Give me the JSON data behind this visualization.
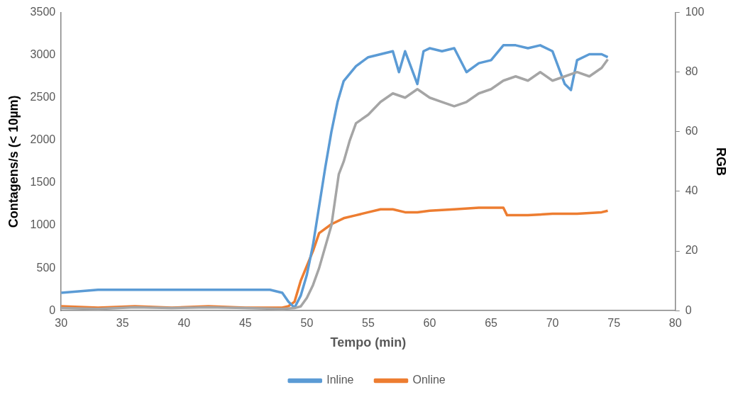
{
  "chart_data": {
    "type": "line",
    "xlabel": "Tempo (min)",
    "ylabel": "Contagens/s (< 10µm)",
    "y2label": "RGB",
    "xlim": [
      30,
      80
    ],
    "xticks": [
      30,
      35,
      40,
      45,
      50,
      55,
      60,
      65,
      70,
      75,
      80
    ],
    "ylim": [
      0,
      3500
    ],
    "yticks": [
      0,
      500,
      1000,
      1500,
      2000,
      2500,
      3000,
      3500
    ],
    "y2lim": [
      0,
      100
    ],
    "y2ticks": [
      0,
      20,
      40,
      60,
      80,
      100
    ],
    "grid": false,
    "legend": "bottom",
    "marker": "none",
    "line_style": "solid",
    "series": [
      {
        "color": "#a5a5a5",
        "axis": "y",
        "x": [
          30,
          33,
          36,
          39,
          42,
          45,
          48,
          49,
          49.5,
          50,
          50.5,
          51,
          51.5,
          52,
          52.3,
          52.6,
          53,
          53.5,
          54,
          55,
          56,
          57,
          58,
          59,
          60,
          61,
          62,
          63,
          64,
          65,
          66,
          67,
          68,
          69,
          70,
          71,
          72,
          73,
          74,
          74.5
        ],
        "values": [
          30,
          20,
          40,
          30,
          40,
          30,
          20,
          30,
          50,
          150,
          300,
          500,
          750,
          1000,
          1300,
          1600,
          1750,
          2000,
          2200,
          2300,
          2450,
          2550,
          2500,
          2600,
          2500,
          2450,
          2400,
          2450,
          2550,
          2600,
          2700,
          2750,
          2700,
          2800,
          2700,
          2750,
          2800,
          2750,
          2850,
          2950
        ]
      },
      {
        "name": "Inline",
        "color": "#5b9bd5",
        "axis": "y2",
        "x": [
          30,
          33,
          36,
          39,
          42,
          45,
          47,
          48,
          48.5,
          49,
          49.5,
          50,
          50.5,
          51,
          51.5,
          52,
          52.5,
          53,
          54,
          55,
          56,
          57,
          57.5,
          58,
          59,
          59.5,
          60,
          61,
          62,
          63,
          64,
          65,
          66,
          67,
          68,
          69,
          70,
          71,
          71.5,
          72,
          73,
          74,
          74.5
        ],
        "values": [
          6,
          7,
          7,
          7,
          7,
          7,
          7,
          6,
          3,
          1,
          5,
          12,
          22,
          35,
          48,
          60,
          70,
          77,
          82,
          85,
          86,
          87,
          80,
          87,
          76,
          87,
          88,
          87,
          88,
          80,
          83,
          84,
          89,
          89,
          88,
          89,
          87,
          76,
          74,
          84,
          86,
          86,
          85
        ]
      },
      {
        "name": "Online",
        "color": "#ed7d31",
        "axis": "y2",
        "x": [
          30,
          33,
          36,
          39,
          42,
          45,
          48,
          48.5,
          49,
          49.5,
          50,
          50.5,
          51,
          52,
          53,
          54,
          55,
          56,
          57,
          58,
          59,
          60,
          62,
          64,
          66,
          66.3,
          68,
          70,
          72,
          74,
          74.5
        ],
        "values": [
          1.5,
          1,
          1.5,
          1,
          1.5,
          1,
          1,
          1.5,
          3,
          10,
          15,
          20,
          26,
          29,
          31,
          32,
          33,
          34,
          34,
          33,
          33,
          33.5,
          34,
          34.5,
          34.5,
          32,
          32,
          32.5,
          32.5,
          33,
          33.5
        ]
      }
    ]
  }
}
